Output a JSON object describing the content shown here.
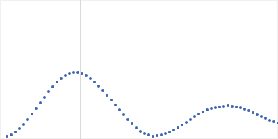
{
  "chart_data": {
    "type": "scatter",
    "color": "#3a64b0",
    "marker": "circle",
    "xlim": [
      0,
      400
    ],
    "ylim": [
      0,
      200
    ],
    "xticks": [
      115
    ],
    "yticks": [
      100
    ],
    "grid": true,
    "tick_labels": false,
    "x": [
      10,
      16,
      22,
      28,
      34,
      40,
      46,
      52,
      58,
      64,
      70,
      76,
      82,
      88,
      94,
      100,
      106,
      112,
      118,
      124,
      130,
      136,
      142,
      148,
      154,
      160,
      166,
      172,
      178,
      184,
      190,
      196,
      202,
      208,
      214,
      220,
      226,
      232,
      238,
      244,
      250,
      256,
      262,
      268,
      274,
      280,
      286,
      292,
      298,
      304,
      310,
      316,
      322,
      328,
      334,
      340,
      346,
      352,
      358,
      364,
      370,
      376,
      382,
      388,
      394,
      400
    ],
    "values": [
      4,
      6,
      10,
      15,
      21,
      28,
      36,
      44,
      52,
      60,
      68,
      75,
      82,
      87,
      91,
      94,
      96,
      96,
      94,
      91,
      87,
      82,
      76,
      70,
      63,
      56,
      49,
      42,
      35,
      28,
      22,
      16,
      11,
      8,
      6,
      4,
      5,
      6,
      8,
      10,
      13,
      16,
      20,
      24,
      28,
      32,
      36,
      39,
      42,
      44,
      45,
      46,
      47,
      48,
      47,
      46,
      45,
      43,
      41,
      38,
      35,
      32,
      30,
      27,
      25,
      23
    ]
  }
}
